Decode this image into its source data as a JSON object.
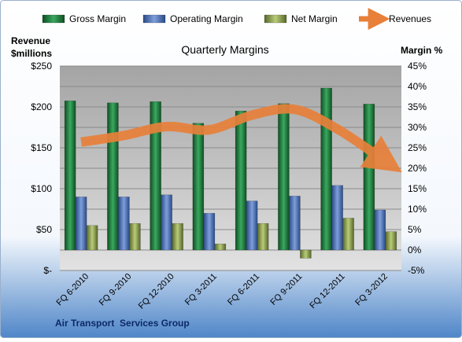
{
  "chart_data": {
    "type": "bar",
    "title": "Quarterly Margins",
    "company": "Air Transport  Services Group",
    "left_axis_label": [
      "Revenue",
      "$millions"
    ],
    "right_axis_label": "Margin %",
    "left_ylim": [
      0,
      250
    ],
    "left_ticks": [
      0,
      50,
      100,
      150,
      200,
      250
    ],
    "left_tick_labels": [
      "$-",
      "$50",
      "$100",
      "$150",
      "$200",
      "$250"
    ],
    "right_ylim": [
      -5,
      45
    ],
    "right_ticks": [
      -5,
      0,
      5,
      10,
      15,
      20,
      25,
      30,
      35,
      40,
      45
    ],
    "right_tick_labels": [
      "-5%",
      "0%",
      "5%",
      "10%",
      "15%",
      "20%",
      "25%",
      "30%",
      "35%",
      "40%",
      "45%"
    ],
    "categories": [
      "FQ 6-2010",
      "FQ 9-2010",
      "FQ 12-2010",
      "FQ 3-2011",
      "FQ 6-2011",
      "FQ 9-2011",
      "FQ 12-2011",
      "FQ 3-2012"
    ],
    "series": [
      {
        "name": "Gross Margin",
        "axis": "right",
        "color": "#1f7a3c",
        "values": [
          36.5,
          36,
          36.3,
          31,
          34,
          35.8,
          39.6,
          35.7
        ]
      },
      {
        "name": "Operating Margin",
        "axis": "right",
        "color": "#4a6fb5",
        "values": [
          13,
          13,
          13.5,
          9,
          12,
          13.2,
          15.8,
          9.8
        ]
      },
      {
        "name": "Net Margin",
        "axis": "right",
        "color": "#8da04e",
        "values": [
          6,
          6.5,
          6.5,
          1.5,
          6.5,
          -2,
          7.8,
          4.5
        ]
      },
      {
        "name": "Revenues",
        "axis": "left",
        "type": "line",
        "color": "#e8803a",
        "values": [
          157,
          165,
          176,
          172,
          190,
          197,
          173,
          138
        ]
      }
    ],
    "legend_position": "top",
    "grid": true
  }
}
